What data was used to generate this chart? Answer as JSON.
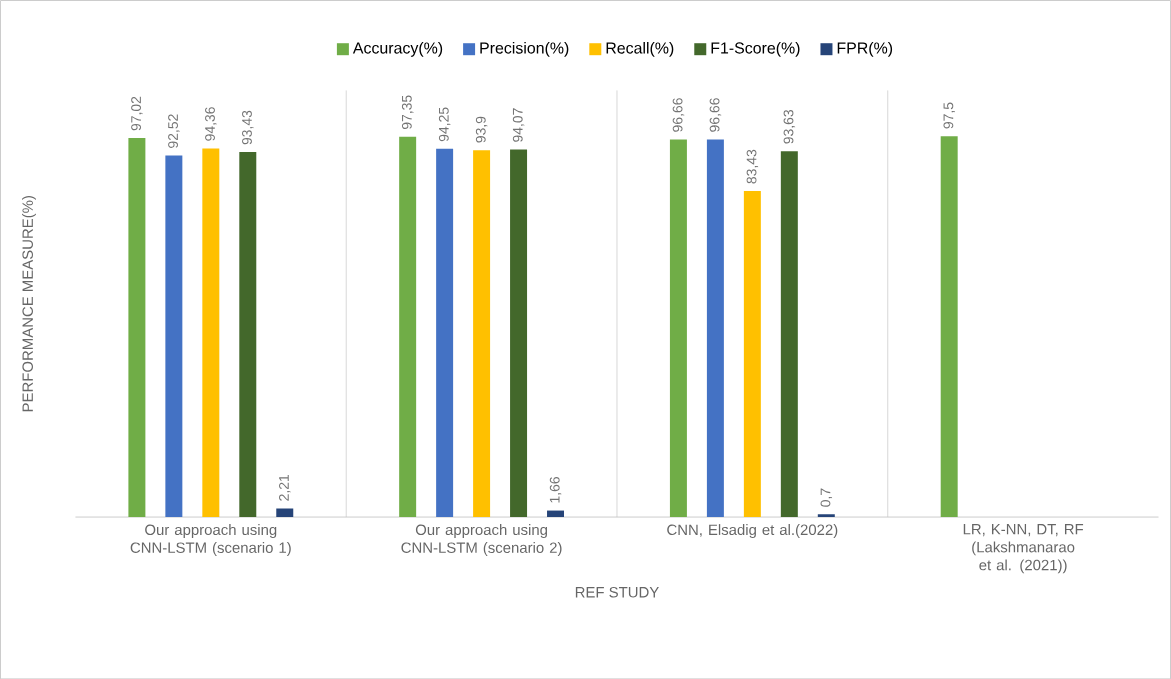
{
  "chart_data": {
    "type": "bar",
    "ylabel": "PERFORMANCE MEASURE(%)",
    "xlabel": "REF STUDY",
    "categories": [
      "Our approach using CNN-LSTM (scenario 1)",
      "Our approach using CNN-LSTM (scenario 2)",
      "CNN, Elsadig  et al.(2022)",
      "LR, K-NN, DT, RF (Lakshmanarao et al. (2021))"
    ],
    "series": [
      {
        "name": "Accuracy(%)",
        "color": "#70ad47",
        "values": [
          97.02,
          97.35,
          96.66,
          97.5
        ],
        "value_labels": [
          "97,02",
          "97,35",
          "96,66",
          "97,5"
        ]
      },
      {
        "name": "Precision(%)",
        "color": "#4472c4",
        "values": [
          92.52,
          94.25,
          96.66,
          null
        ],
        "value_labels": [
          "92,52",
          "94,25",
          "96,66",
          null
        ]
      },
      {
        "name": "Recall(%)",
        "color": "#ffc000",
        "values": [
          94.36,
          93.9,
          83.43,
          null
        ],
        "value_labels": [
          "94,36",
          "93,9",
          "83,43",
          null
        ]
      },
      {
        "name": "F1-Score(%)",
        "color": "#43682b",
        "values": [
          93.43,
          94.07,
          93.63,
          null
        ],
        "value_labels": [
          "93,43",
          "94,07",
          "93,63",
          null
        ]
      },
      {
        "name": "FPR(%)",
        "color": "#264478",
        "values": [
          2.21,
          1.66,
          0.7,
          null
        ],
        "value_labels": [
          "2,21",
          "1,66",
          "0,7",
          null
        ]
      }
    ],
    "legend": "top",
    "grid": "x",
    "tick_labels": "x"
  }
}
